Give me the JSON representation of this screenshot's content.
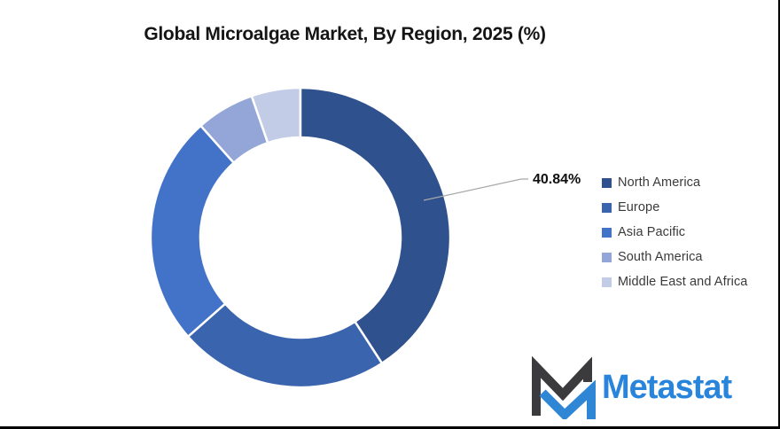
{
  "chart_data": {
    "type": "pie",
    "subtype": "donut",
    "title": "Global Microalgae Market, By Region, 2025 (%)",
    "categories": [
      "North America",
      "Europe",
      "Asia Pacific",
      "South America",
      "Middle East and Africa"
    ],
    "values": [
      40.84,
      22.66,
      24.9,
      6.3,
      5.3
    ],
    "colors": [
      "#2F518E",
      "#3B64AE",
      "#4373C8",
      "#93A6D7",
      "#C3CCE7"
    ],
    "data_label": {
      "series": "North America",
      "text": "40.84%"
    },
    "labeled_slices_only": [
      "North America"
    ],
    "start_angle_deg": 0,
    "direction": "clockwise",
    "donut_hole_ratio": 0.67,
    "legend_position": "right",
    "grid": "off"
  },
  "logo": {
    "text": "Metastat",
    "brand_color": "#2984DB",
    "mark_dark_color": "#3B3B3D",
    "mark_blue_color": "#2E86D5"
  }
}
